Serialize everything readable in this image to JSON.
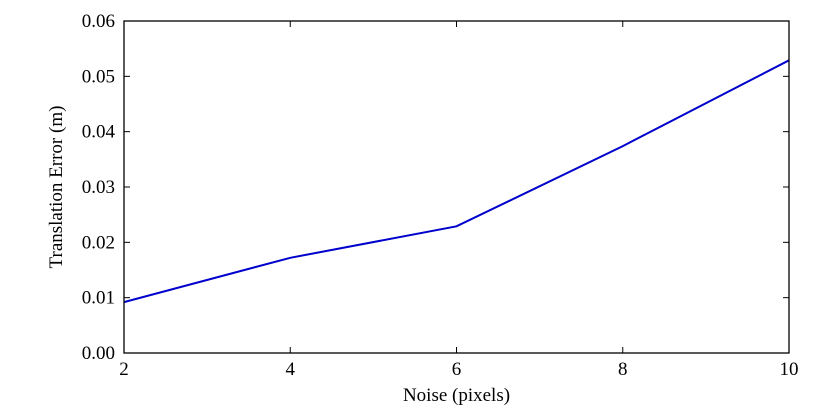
{
  "chart_data": {
    "type": "line",
    "title": "",
    "xlabel": "Noise (pixels)",
    "ylabel": "Translation Error (m)",
    "xlim": [
      2,
      10
    ],
    "ylim": [
      0.0,
      0.06
    ],
    "x_ticks": [
      2,
      4,
      6,
      8,
      10
    ],
    "x_tick_labels": [
      "2",
      "4",
      "6",
      "8",
      "10"
    ],
    "y_ticks": [
      0.0,
      0.01,
      0.02,
      0.03,
      0.04,
      0.05,
      0.06
    ],
    "y_tick_labels": [
      "0.00",
      "0.01",
      "0.02",
      "0.03",
      "0.04",
      "0.05",
      "0.06"
    ],
    "grid": false,
    "legend": "none",
    "series": [
      {
        "color": "#0000cc",
        "x": [
          2,
          4,
          6,
          8,
          10
        ],
        "y": [
          0.0092,
          0.0172,
          0.0229,
          0.0374,
          0.0529
        ]
      }
    ]
  }
}
